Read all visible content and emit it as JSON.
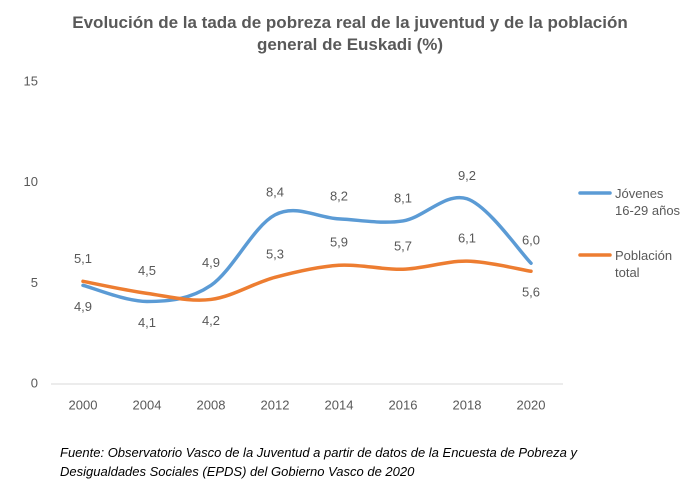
{
  "chart_data": {
    "type": "line",
    "title": "Evolución de la tada de pobreza real de la juventud y de la población general de Euskadi (%)",
    "categories": [
      "2000",
      "2004",
      "2008",
      "2012",
      "2014",
      "2016",
      "2018",
      "2020"
    ],
    "series": [
      {
        "name": "Jóvenes 16-29 años",
        "color": "#5b9bd5",
        "values": [
          4.9,
          4.1,
          4.9,
          8.4,
          8.2,
          8.1,
          9.2,
          6.0
        ],
        "value_labels": [
          "4,9",
          "4,1",
          "4,9",
          "8,4",
          "8,2",
          "8,1",
          "9,2",
          "6,0"
        ]
      },
      {
        "name": "Población total",
        "color": "#ed7d31",
        "values": [
          5.1,
          4.5,
          4.2,
          5.3,
          5.9,
          5.7,
          6.1,
          5.6
        ],
        "value_labels": [
          "5,1",
          "4,5",
          "4,2",
          "5,3",
          "5,9",
          "5,7",
          "6,1",
          "5,6"
        ]
      }
    ],
    "ylim": [
      0,
      15
    ],
    "yticks": [
      0,
      5,
      10,
      15
    ],
    "grid": false,
    "smooth": true,
    "legend": "right",
    "source": "Fuente: Observatorio Vasco de la Juventud a partir de datos de la Encuesta de Pobreza y Desigualdades Sociales (EPDS) del Gobierno Vasco de 2020"
  }
}
